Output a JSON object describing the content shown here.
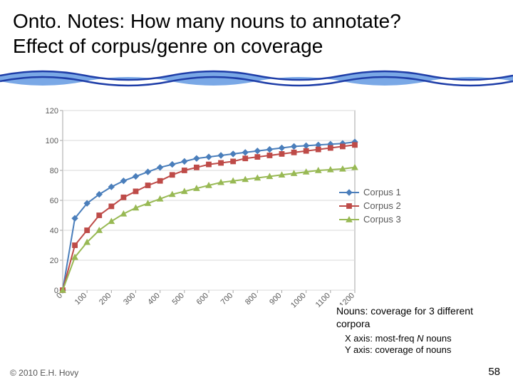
{
  "title_line1": "Onto. Notes: How many nouns to annotate?",
  "title_line2": "Effect of corpus/genre on coverage",
  "wave": {
    "line_color": "#1f3ea8",
    "fill_color": "#7aa8e6"
  },
  "chart": {
    "type": "line",
    "background_color": "#ffffff",
    "plot_border_color": "#a6a6a6",
    "grid_color": "#d9d9d9",
    "xlim": [
      0,
      1200
    ],
    "ylim": [
      0,
      120
    ],
    "ytick_step": 20,
    "x_ticks": [
      0,
      100,
      200,
      300,
      400,
      500,
      600,
      700,
      800,
      900,
      1000,
      1100,
      1200
    ],
    "y_ticks": [
      0,
      20,
      40,
      60,
      80,
      100,
      120
    ],
    "axis_label_color": "#595959",
    "axis_label_fontsize": 11,
    "line_width": 2,
    "marker_size": 6,
    "series": [
      {
        "name": "Corpus 1",
        "color": "#4a7ebb",
        "marker": "diamond",
        "x": [
          0,
          50,
          100,
          150,
          200,
          250,
          300,
          350,
          400,
          450,
          500,
          550,
          600,
          650,
          700,
          750,
          800,
          850,
          900,
          950,
          1000,
          1050,
          1100,
          1150,
          1200
        ],
        "y": [
          0,
          48,
          58,
          64,
          69,
          73,
          76,
          79,
          82,
          84,
          86,
          88,
          89,
          90,
          91,
          92,
          93,
          94,
          95,
          96,
          96.5,
          97,
          97.5,
          98,
          99
        ]
      },
      {
        "name": "Corpus 2",
        "color": "#be4b48",
        "marker": "square",
        "x": [
          0,
          50,
          100,
          150,
          200,
          250,
          300,
          350,
          400,
          450,
          500,
          550,
          600,
          650,
          700,
          750,
          800,
          850,
          900,
          950,
          1000,
          1050,
          1100,
          1150,
          1200
        ],
        "y": [
          0,
          30,
          40,
          50,
          56,
          62,
          66,
          70,
          73,
          77,
          80,
          82,
          84,
          85,
          86,
          88,
          89,
          90,
          91,
          92,
          93,
          94,
          95,
          96,
          97
        ]
      },
      {
        "name": "Corpus 3",
        "color": "#98b954",
        "marker": "triangle",
        "x": [
          0,
          50,
          100,
          150,
          200,
          250,
          300,
          350,
          400,
          450,
          500,
          550,
          600,
          650,
          700,
          750,
          800,
          850,
          900,
          950,
          1000,
          1050,
          1100,
          1150,
          1200
        ],
        "y": [
          0,
          22,
          32,
          40,
          46,
          51,
          55,
          58,
          61,
          64,
          66,
          68,
          70,
          72,
          73,
          74,
          75,
          76,
          77,
          78,
          79,
          80,
          80.5,
          81,
          82
        ]
      }
    ]
  },
  "legend": {
    "items": [
      "Corpus 1",
      "Corpus 2",
      "Corpus 3"
    ],
    "text_color": "#595959",
    "fontsize": 13
  },
  "caption": {
    "title": "Nouns: coverage for 3 different corpora",
    "x_axis_prefix": "X axis: most-freq ",
    "x_axis_italic": "N",
    "x_axis_suffix": " nouns",
    "y_axis": "Y axis: coverage of nouns"
  },
  "footer": {
    "copyright": "© 2010  E.H. Hovy",
    "page": "58"
  }
}
